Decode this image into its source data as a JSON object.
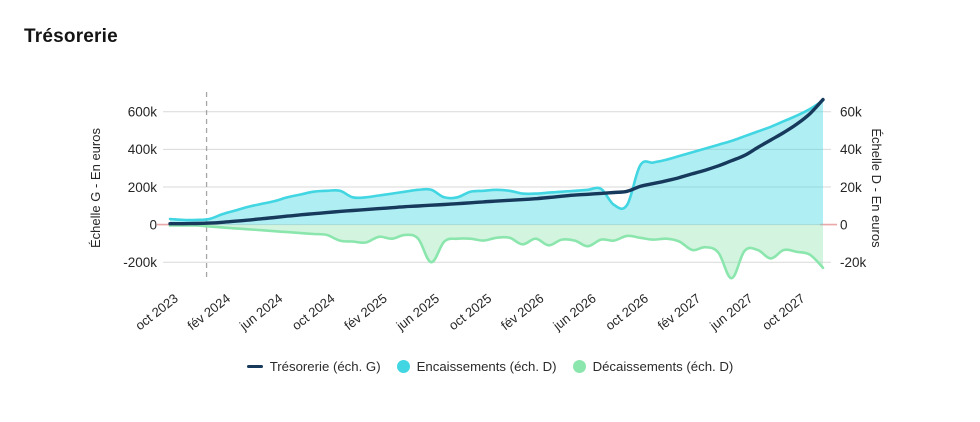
{
  "page": {
    "title": "Trésorerie"
  },
  "chart_data": {
    "type": "line+area",
    "title": "Trésorerie",
    "months_total": 51,
    "x_start_label": "oct 2023",
    "x_ticks": [
      {
        "label": "oct 2023",
        "month_index": 0
      },
      {
        "label": "fév 2024",
        "month_index": 4
      },
      {
        "label": "jun 2024",
        "month_index": 8
      },
      {
        "label": "oct 2024",
        "month_index": 12
      },
      {
        "label": "fév 2025",
        "month_index": 16
      },
      {
        "label": "jun 2025",
        "month_index": 20
      },
      {
        "label": "oct 2025",
        "month_index": 24
      },
      {
        "label": "fév 2026",
        "month_index": 28
      },
      {
        "label": "jun 2026",
        "month_index": 32
      },
      {
        "label": "oct 2026",
        "month_index": 36
      },
      {
        "label": "fév 2027",
        "month_index": 40
      },
      {
        "label": "jun 2027",
        "month_index": 44
      },
      {
        "label": "oct 2027",
        "month_index": 48
      }
    ],
    "left_axis": {
      "label": "Échelle G - En euros",
      "tick_labels": [
        "600k",
        "400k",
        "200k",
        "0",
        "-200k"
      ],
      "tick_values": [
        600000,
        400000,
        200000,
        0,
        -200000
      ],
      "range": [
        -300000,
        700000
      ]
    },
    "right_axis": {
      "label": "Échelle D - En euros",
      "tick_labels": [
        "60k",
        "40k",
        "20k",
        "0",
        "-20k"
      ],
      "tick_values": [
        60000,
        40000,
        20000,
        0,
        -20000
      ],
      "range": [
        -30000,
        70000
      ]
    },
    "grid_color": "#d9d9d9",
    "zero_line": {
      "color": "#eba8a8"
    },
    "dashed_line": {
      "month_index": 2.8,
      "color": "#a6a6a6"
    },
    "series": [
      {
        "name": "Décaissements (éch. D)",
        "axis": "right",
        "kind": "area",
        "color": "#8be6ad",
        "fill_opacity": 0.38,
        "values_eur": [
          -500,
          -500,
          -500,
          -1000,
          -1500,
          -2000,
          -2500,
          -3000,
          -3500,
          -4000,
          -4500,
          -5000,
          -5500,
          -8500,
          -9000,
          -9500,
          -6500,
          -7500,
          -5500,
          -7500,
          -20000,
          -9000,
          -7500,
          -7500,
          -8500,
          -7000,
          -7000,
          -10500,
          -7500,
          -11000,
          -8000,
          -8500,
          -11500,
          -8000,
          -8500,
          -6000,
          -7000,
          -8000,
          -7500,
          -9000,
          -13500,
          -12000,
          -15000,
          -28500,
          -14000,
          -13500,
          -18000,
          -13500,
          -14500,
          -16000,
          -23000
        ]
      },
      {
        "name": "Encaissements (éch. D)",
        "axis": "right",
        "kind": "area",
        "color": "#41d6e2",
        "fill_opacity": 0.42,
        "values_eur": [
          3000,
          2500,
          2500,
          3000,
          5500,
          7500,
          9500,
          11000,
          12500,
          14500,
          16000,
          17500,
          18000,
          18000,
          14500,
          14500,
          15500,
          16500,
          17500,
          18500,
          18500,
          14500,
          14500,
          17500,
          18000,
          18500,
          18000,
          16500,
          16500,
          17000,
          17500,
          18000,
          18500,
          19000,
          10500,
          10500,
          31500,
          33000,
          34500,
          36500,
          38500,
          40500,
          42500,
          44500,
          47000,
          49500,
          52000,
          55000,
          58000,
          61500,
          66000
        ]
      },
      {
        "name": "Trésorerie (éch. G)",
        "axis": "left",
        "kind": "line",
        "color": "#173a5c",
        "values_eur": [
          5000,
          5000,
          6000,
          8000,
          12000,
          18000,
          24000,
          31000,
          38000,
          45000,
          52000,
          58000,
          64000,
          70000,
          75000,
          80000,
          85000,
          90000,
          95000,
          99000,
          103000,
          107000,
          111000,
          116000,
          121000,
          125000,
          129000,
          133000,
          138000,
          144000,
          151000,
          157000,
          161000,
          166000,
          171000,
          177000,
          203000,
          218000,
          233000,
          250000,
          270000,
          290000,
          313000,
          340000,
          368000,
          410000,
          450000,
          490000,
          535000,
          590000,
          665000
        ]
      }
    ],
    "legend_order": [
      2,
      1,
      0
    ]
  }
}
